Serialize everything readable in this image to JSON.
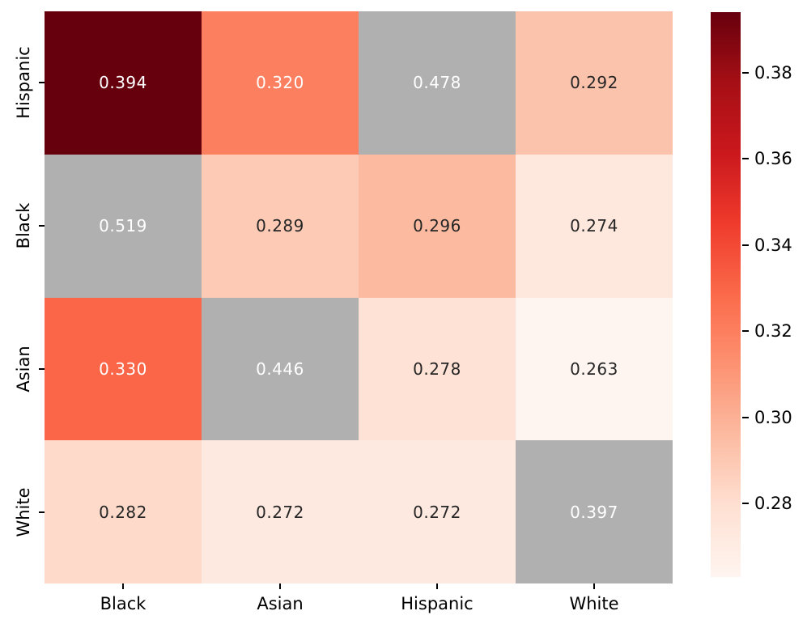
{
  "chart_data": {
    "type": "heatmap",
    "title": "",
    "xlabel": "",
    "ylabel": "",
    "x_categories": [
      "Black",
      "Asian",
      "Hispanic",
      "White"
    ],
    "y_categories": [
      "Hispanic",
      "Black",
      "Asian",
      "White"
    ],
    "matrix": [
      [
        0.394,
        0.32,
        0.478,
        0.292
      ],
      [
        0.519,
        0.289,
        0.296,
        0.274
      ],
      [
        0.33,
        0.446,
        0.278,
        0.263
      ],
      [
        0.282,
        0.272,
        0.272,
        0.397
      ]
    ],
    "masked": [
      [
        false,
        false,
        true,
        false
      ],
      [
        true,
        false,
        false,
        false
      ],
      [
        false,
        true,
        false,
        false
      ],
      [
        false,
        false,
        false,
        true
      ]
    ],
    "value_format_decimals": 3,
    "vmin": 0.263,
    "vmax": 0.394,
    "colormap": {
      "name": "Reds",
      "anchor_positions": [
        0,
        0.125,
        0.25,
        0.375,
        0.5,
        0.625,
        0.75,
        0.875,
        1
      ],
      "anchor_colors": [
        "#fff5f0",
        "#fee0d2",
        "#fcbba1",
        "#fc9272",
        "#fb6a4a",
        "#ef3b2c",
        "#cb181d",
        "#a50f15",
        "#67000d"
      ]
    },
    "mask_color": "#b0b0b0",
    "annotation_dark_color": "#262626",
    "annotation_light_color": "#ffffff",
    "background_color": "#ffffff",
    "colorbar": {
      "position": "right",
      "tick_labels": [
        "0.38",
        "0.36",
        "0.34",
        "0.32",
        "0.30",
        "0.28"
      ],
      "tick_values": [
        0.38,
        0.36,
        0.34,
        0.32,
        0.3,
        0.28
      ]
    },
    "grid": false,
    "legend": false
  }
}
